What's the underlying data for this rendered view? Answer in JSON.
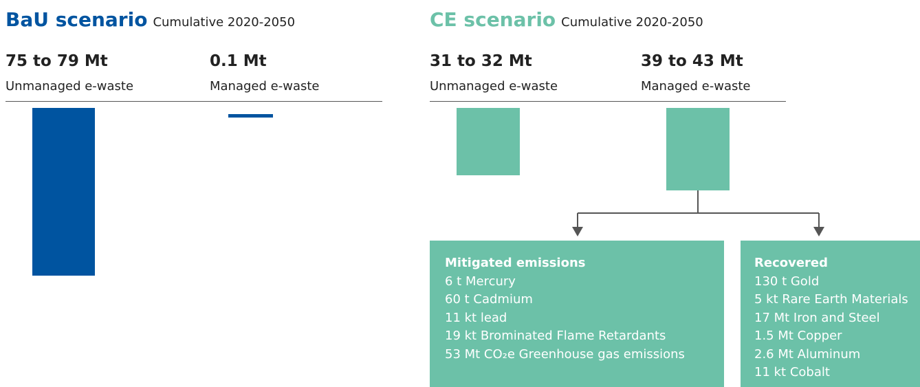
{
  "bau": {
    "title": "BaU scenario",
    "subtitle": "Cumulative 2020-2050",
    "columns": [
      {
        "amount": "75 to 79 Mt",
        "label": "Unmanaged e-waste"
      },
      {
        "amount": "0.1 Mt",
        "label": "Managed e-waste"
      }
    ]
  },
  "ce": {
    "title": "CE scenario",
    "subtitle": "Cumulative 2020-2050",
    "columns": [
      {
        "amount": "31 to 32 Mt",
        "label": "Unmanaged e-waste"
      },
      {
        "amount": "39 to 43 Mt",
        "label": "Managed e-waste"
      }
    ]
  },
  "boxes": [
    {
      "title": "Mitigated emissions",
      "items": [
        "6 t Mercury",
        "60 t Cadmium",
        "11 kt lead",
        "19 kt Brominated Flame Retardants",
        "53 Mt CO₂e Greenhouse gas emissions"
      ]
    },
    {
      "title": "Recovered",
      "items": [
        "130 t Gold",
        "5 kt Rare Earth Materials",
        "17 Mt Iron and Steel",
        "1.5 Mt Copper",
        "2.6 Mt Aluminum",
        "11 kt Cobalt"
      ]
    }
  ]
}
